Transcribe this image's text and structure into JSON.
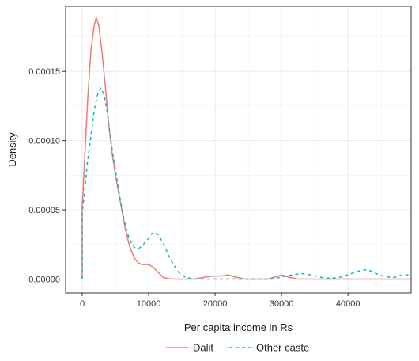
{
  "chart_data": {
    "type": "line",
    "title": "",
    "xlabel": "Per capita income in Rs",
    "ylabel": "Density",
    "xlim": [
      -2500,
      49500
    ],
    "ylim": [
      -1e-05,
      0.000197
    ],
    "x_ticks": [
      0,
      10000,
      20000,
      30000,
      40000
    ],
    "x_tick_labels": [
      "0",
      "10000",
      "20000",
      "30000",
      "40000"
    ],
    "y_ticks": [
      0,
      5e-05,
      0.0001,
      0.00015
    ],
    "y_tick_labels": [
      "0.00000",
      "0.00005",
      "0.00010",
      "0.00015"
    ],
    "grid": true,
    "legend_position": "bottom",
    "series": [
      {
        "name": "Dalit",
        "color": "#F8766D",
        "linestyle": "solid",
        "points": [
          [
            0,
            0
          ],
          [
            0,
            5.2e-05
          ],
          [
            300,
            8e-05
          ],
          [
            800,
            0.000128
          ],
          [
            1300,
            0.000165
          ],
          [
            1800,
            0.000183
          ],
          [
            2100,
            0.000189
          ],
          [
            2500,
            0.000183
          ],
          [
            3000,
            0.000163
          ],
          [
            3500,
            0.000138
          ],
          [
            4000,
            0.000111
          ],
          [
            4500,
            9.1e-05
          ],
          [
            5000,
            7.5e-05
          ],
          [
            5500,
            6.2e-05
          ],
          [
            6000,
            4.9e-05
          ],
          [
            6500,
            3.6e-05
          ],
          [
            7000,
            2.6e-05
          ],
          [
            7500,
            1.9e-05
          ],
          [
            8000,
            1.4e-05
          ],
          [
            8500,
            1.15e-05
          ],
          [
            9000,
            1.05e-05
          ],
          [
            10000,
            1.05e-05
          ],
          [
            10700,
            8.5e-06
          ],
          [
            11500,
            4.5e-06
          ],
          [
            12200,
            1.2e-06
          ],
          [
            13000,
            2e-07
          ],
          [
            14000,
            0
          ],
          [
            17000,
            0
          ],
          [
            18500,
            1.5e-06
          ],
          [
            20000,
            2.2e-06
          ],
          [
            21000,
            2.2e-06
          ],
          [
            22000,
            3e-06
          ],
          [
            23000,
            1.5e-06
          ],
          [
            24500,
            0
          ],
          [
            28000,
            0
          ],
          [
            29000,
            1.5e-06
          ],
          [
            30000,
            3e-06
          ],
          [
            31000,
            1.5e-06
          ],
          [
            32500,
            0
          ],
          [
            49500,
            0
          ]
        ]
      },
      {
        "name": "Other caste",
        "color": "#00BFC4",
        "linestyle": "dashed",
        "points": [
          [
            0,
            0
          ],
          [
            0,
            4.8e-05
          ],
          [
            300,
            6e-05
          ],
          [
            800,
            8.5e-05
          ],
          [
            1300,
            0.000103
          ],
          [
            1800,
            0.000122
          ],
          [
            2300,
            0.000133
          ],
          [
            2800,
            0.000138
          ],
          [
            3300,
            0.000133
          ],
          [
            3800,
            0.000119
          ],
          [
            4300,
            0.0001
          ],
          [
            4800,
            8.5e-05
          ],
          [
            5300,
            7e-05
          ],
          [
            5800,
            5.5e-05
          ],
          [
            6300,
            4.3e-05
          ],
          [
            6800,
            3.3e-05
          ],
          [
            7300,
            2.7e-05
          ],
          [
            7800,
            2.3e-05
          ],
          [
            8500,
            2.2e-05
          ],
          [
            9200,
            2.5e-05
          ],
          [
            9900,
            2.9e-05
          ],
          [
            10500,
            3.3e-05
          ],
          [
            11000,
            3.4e-05
          ],
          [
            11600,
            3.1e-05
          ],
          [
            12300,
            2.5e-05
          ],
          [
            13000,
            1.7e-05
          ],
          [
            13800,
            1e-05
          ],
          [
            14600,
            4.5e-06
          ],
          [
            15500,
            1.5e-06
          ],
          [
            16500,
            3e-07
          ],
          [
            17500,
            0
          ],
          [
            28500,
            0
          ],
          [
            30000,
            1.5e-06
          ],
          [
            31500,
            3e-06
          ],
          [
            33000,
            4e-06
          ],
          [
            34500,
            3e-06
          ],
          [
            36000,
            1.2e-06
          ],
          [
            37500,
            5e-07
          ],
          [
            39000,
            1.5e-06
          ],
          [
            40500,
            4e-06
          ],
          [
            42000,
            6.5e-06
          ],
          [
            43000,
            6.8e-06
          ],
          [
            44200,
            4e-06
          ],
          [
            45500,
            1.8e-06
          ],
          [
            47000,
            1.2e-06
          ],
          [
            48500,
            3.5e-06
          ],
          [
            49400,
            2.5e-06
          ]
        ]
      }
    ]
  }
}
